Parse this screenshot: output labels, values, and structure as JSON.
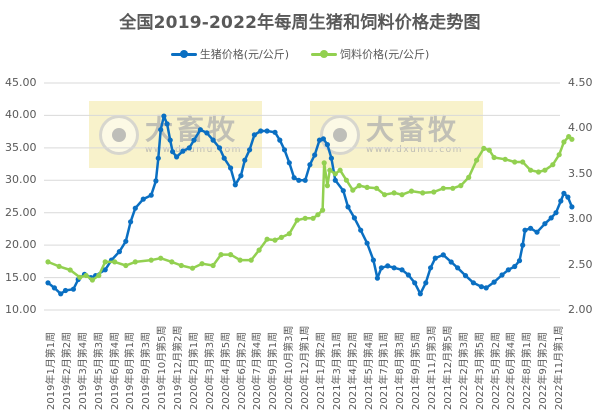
{
  "chart_data": {
    "type": "line",
    "title": "全国2019-2022年每周生猪和饲料价格走势图",
    "xlabel": "",
    "ylabel": "",
    "y_left": {
      "ticks": [
        "45.00",
        "40.00",
        "35.00",
        "30.00",
        "25.00",
        "20.00",
        "15.00",
        "10.00"
      ],
      "range": [
        10,
        45
      ]
    },
    "y_right": {
      "ticks": [
        "4.50",
        "4.00",
        "3.50",
        "3.00",
        "2.50",
        "2.00"
      ],
      "range": [
        2.0,
        4.5
      ]
    },
    "grid": true,
    "legend_position": "top",
    "categories": [
      "2019年1月第1周",
      "2019年2月第2周",
      "2019年3月第4周",
      "2019年5月第3周",
      "2019年6月第4周",
      "2019年8月第1周",
      "2019年9月第3周",
      "2019年10月第5周",
      "2019年12月第2周",
      "2020年2月第1周",
      "2020年3月第3周",
      "2020年4月第5周",
      "2020年6月第2周",
      "2020年7月第4周",
      "2020年9月第1周",
      "2020年10月第3周",
      "2020年12月第1周",
      "2021年1月第2周",
      "2021年3月第1周",
      "2021年4月第2周",
      "2021年5月第4周",
      "2021年7月第1周",
      "2021年8月第3周",
      "2021年9月第5周",
      "2021年11月第3周",
      "2021年12月第5周",
      "2022年2月第3周",
      "2022年3月第5周",
      "2022年5月第2周",
      "2022年6月第4周",
      "2022年8月第1周",
      "2022年9月第2周",
      "2022年11月第1周"
    ],
    "series": [
      {
        "name": "生猪价格(元/公斤)",
        "axis": "left",
        "color": "#0a6fc2",
        "points": [
          [
            0,
            14.2
          ],
          [
            0.4,
            13.4
          ],
          [
            0.8,
            12.5
          ],
          [
            1.1,
            13.0
          ],
          [
            1.6,
            13.2
          ],
          [
            1.9,
            14.7
          ],
          [
            2.3,
            15.5
          ],
          [
            2.7,
            15.0
          ],
          [
            3.0,
            15.3
          ],
          [
            3.6,
            16.2
          ],
          [
            4.0,
            17.7
          ],
          [
            4.5,
            19.0
          ],
          [
            4.9,
            20.6
          ],
          [
            5.2,
            23.6
          ],
          [
            5.5,
            25.7
          ],
          [
            6.0,
            27.1
          ],
          [
            6.5,
            27.7
          ],
          [
            6.8,
            29.9
          ],
          [
            6.95,
            33.4
          ],
          [
            7.1,
            37.8
          ],
          [
            7.3,
            39.9
          ],
          [
            7.5,
            38.7
          ],
          [
            7.7,
            36.2
          ],
          [
            7.85,
            34.4
          ],
          [
            8.1,
            33.6
          ],
          [
            8.5,
            34.5
          ],
          [
            8.9,
            35.0
          ],
          [
            9.2,
            36.2
          ],
          [
            9.6,
            37.8
          ],
          [
            10.0,
            37.3
          ],
          [
            10.4,
            36.2
          ],
          [
            10.8,
            35.0
          ],
          [
            11.1,
            33.4
          ],
          [
            11.5,
            31.9
          ],
          [
            11.8,
            29.3
          ],
          [
            12.15,
            30.7
          ],
          [
            12.4,
            33.1
          ],
          [
            12.7,
            34.7
          ],
          [
            13.0,
            37.0
          ],
          [
            13.4,
            37.6
          ],
          [
            13.8,
            37.6
          ],
          [
            14.3,
            37.4
          ],
          [
            14.6,
            36.2
          ],
          [
            14.9,
            34.7
          ],
          [
            15.2,
            32.7
          ],
          [
            15.5,
            30.4
          ],
          [
            15.8,
            30.0
          ],
          [
            16.2,
            30.0
          ],
          [
            16.5,
            32.4
          ],
          [
            16.8,
            33.9
          ],
          [
            17.1,
            36.2
          ],
          [
            17.35,
            36.4
          ],
          [
            17.6,
            35.5
          ],
          [
            17.85,
            33.4
          ],
          [
            18.1,
            30.0
          ],
          [
            18.6,
            28.4
          ],
          [
            18.9,
            25.9
          ],
          [
            19.3,
            24.2
          ],
          [
            19.7,
            22.3
          ],
          [
            20.1,
            20.3
          ],
          [
            20.5,
            17.7
          ],
          [
            20.75,
            14.9
          ],
          [
            21.0,
            16.5
          ],
          [
            21.4,
            16.8
          ],
          [
            21.8,
            16.5
          ],
          [
            22.3,
            16.2
          ],
          [
            22.7,
            15.4
          ],
          [
            23.1,
            14.2
          ],
          [
            23.45,
            12.5
          ],
          [
            23.8,
            14.2
          ],
          [
            24.1,
            16.5
          ],
          [
            24.4,
            18.0
          ],
          [
            24.9,
            18.5
          ],
          [
            25.4,
            17.4
          ],
          [
            25.8,
            16.5
          ],
          [
            26.3,
            15.3
          ],
          [
            26.8,
            14.2
          ],
          [
            27.3,
            13.6
          ],
          [
            27.6,
            13.4
          ],
          [
            28.1,
            14.3
          ],
          [
            28.6,
            15.4
          ],
          [
            29.0,
            16.2
          ],
          [
            29.4,
            16.7
          ],
          [
            29.7,
            17.6
          ],
          [
            29.9,
            20.0
          ],
          [
            30.05,
            22.3
          ],
          [
            30.4,
            22.6
          ],
          [
            30.8,
            22.0
          ],
          [
            31.3,
            23.3
          ],
          [
            31.7,
            24.2
          ],
          [
            32.0,
            25.0
          ],
          [
            32.3,
            26.8
          ],
          [
            32.5,
            28.0
          ],
          [
            32.75,
            27.4
          ],
          [
            33.0,
            25.9
          ]
        ]
      },
      {
        "name": "饲料价格(元/公斤)",
        "axis": "right",
        "color": "#92d050",
        "points": [
          [
            0,
            2.53
          ],
          [
            0.7,
            2.48
          ],
          [
            1.4,
            2.44
          ],
          [
            2.0,
            2.36
          ],
          [
            2.4,
            2.38
          ],
          [
            2.8,
            2.33
          ],
          [
            3.2,
            2.38
          ],
          [
            3.6,
            2.53
          ],
          [
            4.2,
            2.53
          ],
          [
            4.9,
            2.49
          ],
          [
            5.5,
            2.53
          ],
          [
            6.5,
            2.55
          ],
          [
            7.1,
            2.57
          ],
          [
            7.8,
            2.53
          ],
          [
            8.4,
            2.49
          ],
          [
            9.1,
            2.46
          ],
          [
            9.7,
            2.51
          ],
          [
            10.4,
            2.49
          ],
          [
            10.9,
            2.61
          ],
          [
            11.5,
            2.61
          ],
          [
            12.1,
            2.55
          ],
          [
            12.8,
            2.55
          ],
          [
            13.3,
            2.66
          ],
          [
            13.8,
            2.78
          ],
          [
            14.3,
            2.77
          ],
          [
            14.7,
            2.8
          ],
          [
            15.2,
            2.84
          ],
          [
            15.7,
            2.99
          ],
          [
            16.2,
            3.01
          ],
          [
            16.7,
            3.01
          ],
          [
            17.0,
            3.05
          ],
          [
            17.3,
            3.1
          ],
          [
            17.4,
            3.62
          ],
          [
            17.6,
            3.37
          ],
          [
            17.75,
            3.54
          ],
          [
            18.1,
            3.5
          ],
          [
            18.4,
            3.54
          ],
          [
            18.8,
            3.43
          ],
          [
            19.2,
            3.32
          ],
          [
            19.6,
            3.37
          ],
          [
            20.1,
            3.35
          ],
          [
            20.7,
            3.34
          ],
          [
            21.2,
            3.27
          ],
          [
            21.8,
            3.29
          ],
          [
            22.3,
            3.27
          ],
          [
            22.9,
            3.31
          ],
          [
            23.6,
            3.29
          ],
          [
            24.3,
            3.3
          ],
          [
            24.9,
            3.34
          ],
          [
            25.5,
            3.34
          ],
          [
            26.0,
            3.37
          ],
          [
            26.5,
            3.46
          ],
          [
            27.0,
            3.65
          ],
          [
            27.45,
            3.78
          ],
          [
            27.8,
            3.76
          ],
          [
            28.1,
            3.68
          ],
          [
            28.8,
            3.66
          ],
          [
            29.4,
            3.63
          ],
          [
            29.9,
            3.63
          ],
          [
            30.4,
            3.54
          ],
          [
            30.9,
            3.52
          ],
          [
            31.3,
            3.54
          ],
          [
            31.8,
            3.6
          ],
          [
            32.2,
            3.71
          ],
          [
            32.5,
            3.85
          ],
          [
            32.8,
            3.91
          ],
          [
            33.0,
            3.88
          ]
        ]
      }
    ]
  },
  "legend": {
    "pig_label": "生猪价格(元/公斤)",
    "feed_label": "饲料价格(元/公斤)"
  },
  "watermark": {
    "cn": "大畜牧",
    "url": "www.dxumu.com"
  },
  "colors": {
    "pig": "#0a6fc2",
    "feed": "#92d050",
    "grid": "#d9d9d9",
    "watermark_bg": "#f2e8a0"
  }
}
